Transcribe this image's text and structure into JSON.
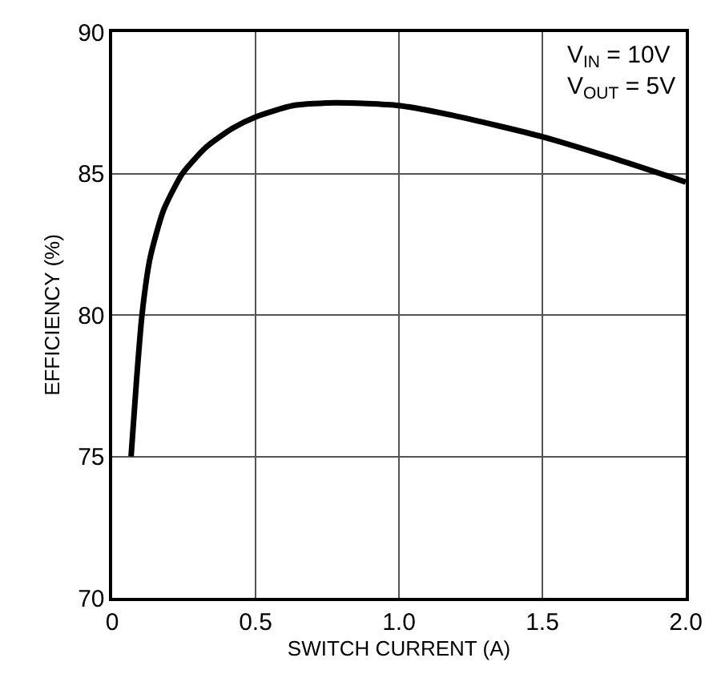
{
  "chart_data": {
    "type": "line",
    "xlabel": "SWITCH CURRENT (A)",
    "ylabel": "EFFICIENCY (%)",
    "x": [
      0.066,
      0.085,
      0.104,
      0.132,
      0.179,
      0.245,
      0.33,
      0.42,
      0.5,
      0.63,
      0.78,
      1.0,
      1.19,
      1.5,
      1.76,
      2.0
    ],
    "series": [
      {
        "color": "#000000",
        "values": [
          75.0,
          77.7,
          80.0,
          82.0,
          83.7,
          85.0,
          85.95,
          86.6,
          87.0,
          87.4,
          87.5,
          87.4,
          87.05,
          86.3,
          85.5,
          84.7
        ]
      }
    ],
    "xlim": [
      0,
      2.0
    ],
    "ylim": [
      70,
      90
    ],
    "xticks": [
      0,
      0.5,
      {
        "value": 1,
        "label": "1.0"
      },
      1.5,
      {
        "value": 2,
        "label": "2.0"
      }
    ],
    "yticks": [
      70,
      75,
      80,
      85,
      90
    ],
    "annotations": [
      "V$_{IN}$ = 10V\nV$_{OUT}$ = 5V"
    ],
    "grid": true,
    "marker": "none",
    "line_style": "solid"
  }
}
